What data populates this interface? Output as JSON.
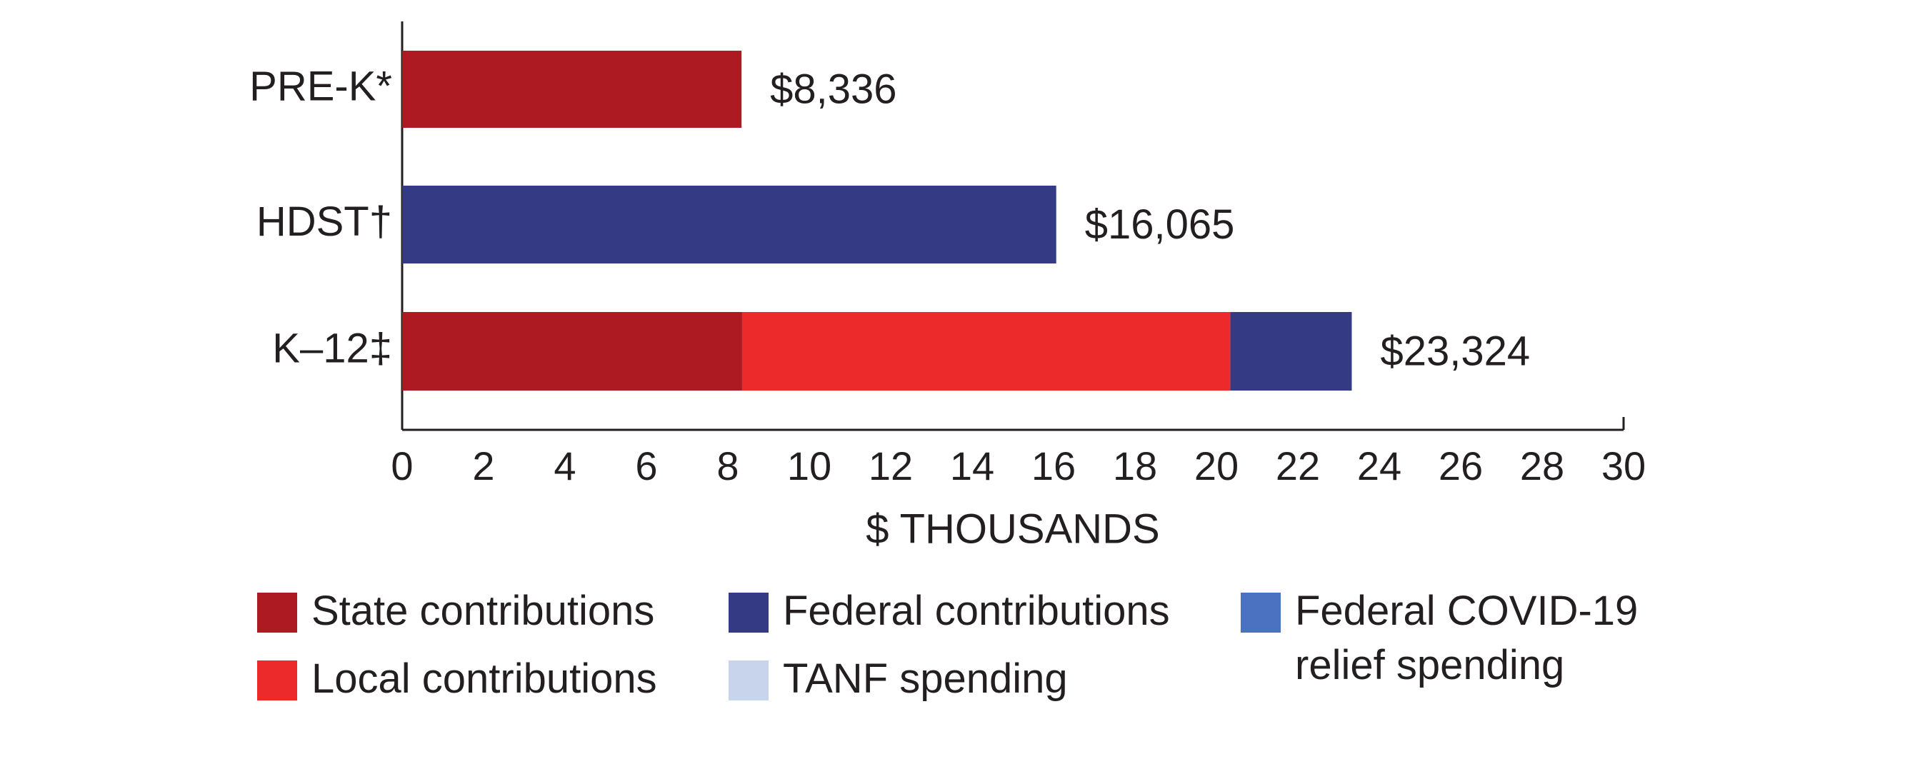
{
  "chart_data": {
    "type": "stacked-bar-horizontal",
    "categories": [
      "PRE-K*",
      "HDST†",
      "K–12‡"
    ],
    "series": [
      {
        "name": "State contributions",
        "color": "#ae1a22",
        "values": [
          8.336,
          null,
          8.35
        ]
      },
      {
        "name": "Local contributions",
        "color": "#ed2a2b",
        "values": [
          null,
          null,
          11.99
        ]
      },
      {
        "name": "Federal contributions",
        "color": "#343a84",
        "values": [
          null,
          16.065,
          2.984
        ]
      },
      {
        "name": "TANF spending",
        "color": "#c8d3ec",
        "values": [
          null,
          null,
          null
        ]
      },
      {
        "name": "Federal COVID-19 relief spending",
        "color": "#4a72c0",
        "values": [
          null,
          null,
          null
        ]
      }
    ],
    "totals": {
      "values": [
        8.336,
        16.065,
        23.324
      ],
      "value_labels": [
        "$8,336",
        "$16,065",
        "$23,324"
      ]
    },
    "xlabel": "$ THOUSANDS",
    "xlim": [
      0,
      30
    ],
    "xticks": [
      0,
      2,
      4,
      6,
      8,
      10,
      12,
      14,
      16,
      18,
      20,
      22,
      24,
      26,
      28,
      30
    ],
    "grid": false
  }
}
